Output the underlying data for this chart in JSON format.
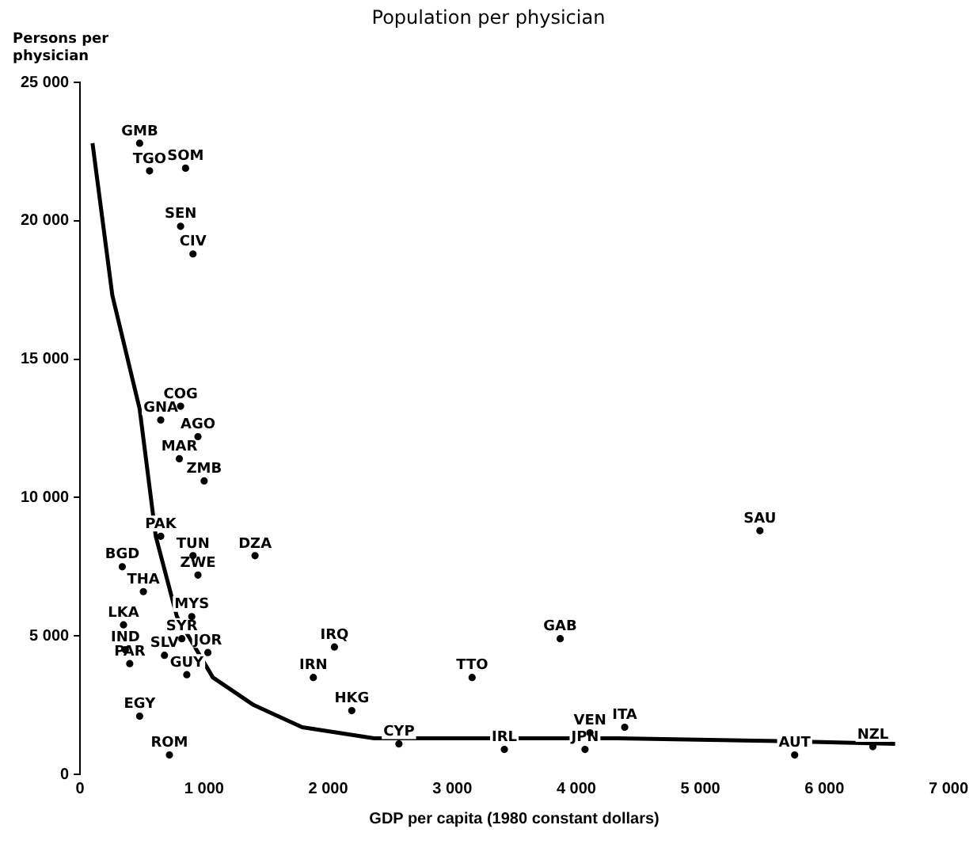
{
  "chart_data": {
    "type": "scatter",
    "title": "Population per physician",
    "xlabel": "GDP per capita (1980 constant dollars)",
    "ylabel": "Persons per physician",
    "xlim": [
      0,
      7000
    ],
    "xticks": [
      0,
      {
        "value": 1000,
        "label": "1 000"
      },
      {
        "value": 2000,
        "label": "2 000"
      },
      {
        "value": 3000,
        "label": "3 000"
      },
      {
        "value": 4000,
        "label": "4 000"
      },
      {
        "value": 5000,
        "label": "5 000"
      },
      {
        "value": 6000,
        "label": "6 000"
      },
      {
        "value": 7000,
        "label": "7 000"
      }
    ],
    "ylim": [
      0,
      25000
    ],
    "yticks": [
      0,
      {
        "value": 5000,
        "label": "5 000"
      },
      {
        "value": 10000,
        "label": "10 000"
      },
      {
        "value": 15000,
        "label": "15 000"
      },
      {
        "value": 20000,
        "label": "20 000"
      },
      {
        "value": 25000,
        "label": "25 000"
      }
    ],
    "grid": false,
    "legend": false,
    "series": [
      {
        "color": "#000000",
        "marker": "circle",
        "x": [
          480,
          560,
          850,
          810,
          910,
          810,
          650,
          950,
          800,
          1000,
          650,
          910,
          1410,
          340,
          950,
          510,
          900,
          350,
          820,
          365,
          1030,
          680,
          400,
          860,
          2050,
          1880,
          2190,
          3160,
          2570,
          480,
          720,
          3870,
          5480,
          3420,
          4070,
          4110,
          4390,
          5760,
          6390
        ],
        "values": [
          22800,
          21800,
          21900,
          19800,
          18800,
          13300,
          12800,
          12200,
          11400,
          10600,
          8600,
          7900,
          7900,
          7500,
          7200,
          6600,
          5700,
          5400,
          4900,
          4500,
          4400,
          4300,
          4000,
          3600,
          4600,
          3500,
          2300,
          3500,
          1100,
          2100,
          700,
          4900,
          8800,
          900,
          900,
          1500,
          1700,
          700,
          1000
        ],
        "value_labels": [
          "GMB",
          "TGO",
          "SOM",
          "SEN",
          "CIV",
          "COG",
          "GNA",
          "AGO",
          "MAR",
          "ZMB",
          "PAK",
          "TUN",
          "DZA",
          "BGD",
          "ZWE",
          "THA",
          "MYS",
          "LKA",
          "SYR",
          "IND",
          "JOR",
          "SLV",
          "PAR",
          "GUY",
          "IRQ",
          "IRN",
          "HKG",
          "TTO",
          "CYP",
          "EGY",
          "ROM",
          "GAB",
          "SAU",
          "IRL",
          "JPN",
          "VEN",
          "ITA",
          "AUT",
          "NZL"
        ]
      },
      {
        "type": "line",
        "color": "#000000",
        "marker": "none",
        "x": [
          100,
          260,
          480,
          610,
          780,
          1070,
          1400,
          1790,
          2370,
          3290,
          4330,
          5630,
          6570
        ],
        "values": [
          22800,
          17300,
          13200,
          8600,
          5700,
          3500,
          2500,
          1700,
          1300,
          1300,
          1300,
          1200,
          1100
        ]
      }
    ]
  }
}
